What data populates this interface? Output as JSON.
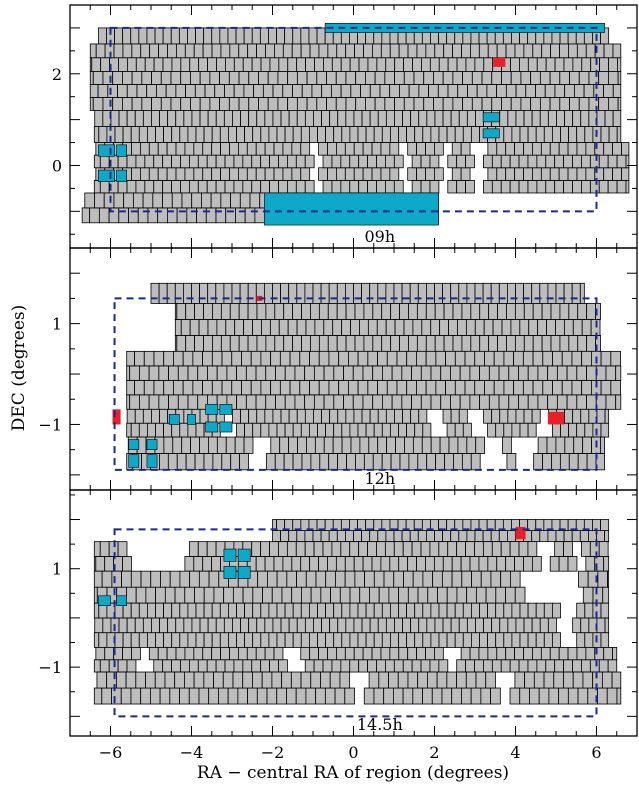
{
  "chart_data": {
    "type": "heatmap",
    "xlabel": "RA − central RA of region (degrees)",
    "ylabel": "DEC (degrees)",
    "xlim": [
      -7,
      7
    ],
    "x_ticks": [
      -6,
      -4,
      -2,
      0,
      2,
      4,
      6
    ],
    "colors": {
      "tile": "#bdbdbd",
      "tile_edge": "#000000",
      "cyan": "#0ea9c9",
      "red": "#e8202a",
      "boundary": "#1b2a8c"
    },
    "panels": [
      {
        "label": "09h",
        "ylim": [
          -1.8,
          3.5
        ],
        "y_ticks": [
          0,
          2
        ],
        "boundary": {
          "ra": [
            -6.0,
            6.0
          ],
          "dec": [
            -1.0,
            3.0
          ]
        },
        "rows": [
          {
            "dec": [
              2.65,
              3.0
            ],
            "ra": [
              [
                -6.3,
                6.3
              ]
            ],
            "gaps": []
          },
          {
            "dec": [
              2.05,
              2.65
            ],
            "ra": [
              [
                -6.5,
                6.6
              ]
            ],
            "gaps": []
          },
          {
            "dec": [
              1.2,
              2.05
            ],
            "ra": [
              [
                -6.5,
                6.6
              ]
            ],
            "gaps": []
          },
          {
            "dec": [
              0.5,
              1.2
            ],
            "ra": [
              [
                -6.4,
                6.6
              ]
            ],
            "gaps": []
          },
          {
            "dec": [
              -0.6,
              0.5
            ],
            "ra": [
              [
                -6.4,
                6.8
              ]
            ],
            "gaps": [
              [
                2.0,
                2.25
              ],
              [
                3.0,
                3.2
              ],
              [
                -1.15,
                -0.95
              ],
              [
                1.1,
                1.3
              ],
              [
                2.8,
                3.0
              ]
            ]
          },
          {
            "dec": [
              -1.25,
              -0.6
            ],
            "ra": [
              [
                -6.7,
                2.1
              ]
            ],
            "gaps": []
          }
        ],
        "cyan": [
          [
            -0.7,
            6.2,
            2.9,
            3.1
          ],
          [
            -2.2,
            2.1,
            -1.3,
            -0.6
          ],
          [
            3.2,
            3.6,
            0.95,
            1.15
          ],
          [
            3.2,
            3.6,
            0.6,
            0.8
          ],
          [
            -6.3,
            -5.9,
            0.2,
            0.45
          ],
          [
            -6.3,
            -5.9,
            -0.35,
            -0.1
          ],
          [
            -5.85,
            -5.6,
            0.2,
            0.45
          ],
          [
            -5.85,
            -5.6,
            -0.35,
            -0.1
          ]
        ],
        "red": [
          [
            3.45,
            3.75,
            2.15,
            2.35
          ]
        ]
      },
      {
        "label": "12h",
        "ylim": [
          -2.3,
          2.5
        ],
        "y_ticks": [
          -1,
          1
        ],
        "boundary": {
          "ra": [
            -5.9,
            6.0
          ],
          "dec": [
            -1.9,
            1.5
          ]
        },
        "rows": [
          {
            "dec": [
              1.4,
              1.8
            ],
            "ra": [
              [
                -5.0,
                5.7
              ]
            ],
            "gaps": []
          },
          {
            "dec": [
              0.45,
              1.4
            ],
            "ra": [
              [
                -4.4,
                6.1
              ]
            ],
            "gaps": []
          },
          {
            "dec": [
              -0.7,
              0.45
            ],
            "ra": [
              [
                -5.6,
                6.6
              ]
            ],
            "gaps": []
          },
          {
            "dec": [
              -1.25,
              -0.7
            ],
            "ra": [
              [
                -5.6,
                6.3
              ]
            ],
            "gaps": [
              [
                1.8,
                2.2
              ],
              [
                2.8,
                3.2
              ],
              [
                4.5,
                4.8
              ],
              [
                -3.3,
                -3.0
              ]
            ]
          },
          {
            "dec": [
              -1.9,
              -1.25
            ],
            "ra": [
              [
                -5.6,
                6.2
              ]
            ],
            "gaps": [
              [
                -2.6,
                -2.2
              ],
              [
                3.1,
                3.6
              ],
              [
                3.8,
                4.4
              ]
            ]
          }
        ],
        "cyan": [
          [
            -5.55,
            -5.3,
            -1.5,
            -1.3
          ],
          [
            -5.55,
            -5.3,
            -1.85,
            -1.6
          ],
          [
            -5.1,
            -4.85,
            -1.5,
            -1.3
          ],
          [
            -5.1,
            -4.85,
            -1.85,
            -1.6
          ],
          [
            -3.65,
            -3.35,
            -0.8,
            -0.6
          ],
          [
            -3.65,
            -3.35,
            -1.15,
            -0.95
          ],
          [
            -3.3,
            -3.0,
            -0.8,
            -0.6
          ],
          [
            -3.3,
            -3.0,
            -1.15,
            -0.95
          ],
          [
            -4.55,
            -4.3,
            -1.0,
            -0.8
          ],
          [
            -4.1,
            -3.9,
            -1.0,
            -0.8
          ]
        ],
        "red": [
          [
            -5.95,
            -5.75,
            -1.0,
            -0.7
          ],
          [
            4.8,
            5.2,
            -1.0,
            -0.75
          ],
          [
            -2.4,
            -2.25,
            1.45,
            1.55
          ]
        ]
      },
      {
        "label": "14.5h",
        "ylim": [
          -2.4,
          2.6
        ],
        "y_ticks": [
          -1,
          1
        ],
        "boundary": {
          "ra": [
            -5.9,
            6.0
          ],
          "dec": [
            -2.0,
            1.8
          ]
        },
        "rows": [
          {
            "dec": [
              1.55,
              2.0
            ],
            "ra": [
              [
                -2.0,
                6.3
              ]
            ],
            "gaps": []
          },
          {
            "dec": [
              0.95,
              1.55
            ],
            "ra": [
              [
                -6.4,
                6.3
              ]
            ],
            "gaps": [
              [
                -5.6,
                -4.2
              ],
              [
                4.5,
                4.8
              ],
              [
                5.3,
                5.6
              ]
            ]
          },
          {
            "dec": [
              0.3,
              0.95
            ],
            "ra": [
              [
                -6.4,
                6.3
              ]
            ],
            "gaps": [
              [
                4.0,
                5.5
              ]
            ]
          },
          {
            "dec": [
              -0.6,
              0.3
            ],
            "ra": [
              [
                -6.4,
                6.3
              ]
            ],
            "gaps": [
              [
                5.0,
                5.4
              ]
            ]
          },
          {
            "dec": [
              -1.1,
              -0.6
            ],
            "ra": [
              [
                -6.4,
                6.5
              ]
            ],
            "gaps": [
              [
                -5.4,
                -5.1
              ],
              [
                -1.8,
                -1.4
              ],
              [
                2.2,
                2.5
              ]
            ]
          },
          {
            "dec": [
              -1.75,
              -1.1
            ],
            "ra": [
              [
                -6.4,
                6.6
              ]
            ],
            "gaps": [
              [
                -0.2,
                0.2
              ],
              [
                3.5,
                3.8
              ]
            ]
          }
        ],
        "cyan": [
          [
            -3.2,
            -2.9,
            1.15,
            1.4
          ],
          [
            -3.2,
            -2.9,
            0.8,
            1.05
          ],
          [
            -2.85,
            -2.55,
            1.15,
            1.4
          ],
          [
            -2.85,
            -2.55,
            0.8,
            1.05
          ],
          [
            -6.3,
            -6.0,
            0.25,
            0.45
          ],
          [
            -5.85,
            -5.6,
            0.25,
            0.45
          ]
        ],
        "red": [
          [
            4.0,
            4.25,
            1.6,
            1.85
          ]
        ]
      }
    ]
  }
}
